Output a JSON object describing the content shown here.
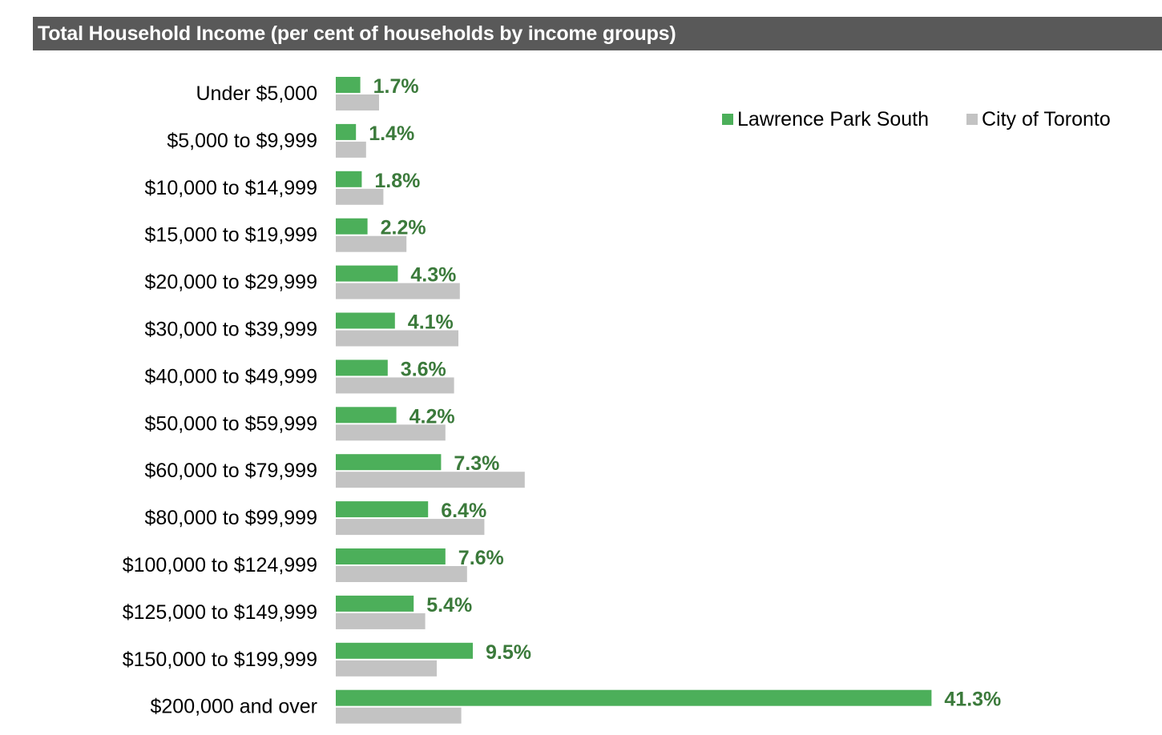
{
  "header": {
    "title": "Total Household Income (per cent of households by income groups)"
  },
  "colors": {
    "title_bar": "#595959",
    "primary_series": "#4caf5a",
    "comparison_series": "#c3c3c3",
    "value_label": "#3b7a3b"
  },
  "chart_data": {
    "type": "bar",
    "orientation": "horizontal",
    "title": "Total Household Income (per cent of households by income groups)",
    "categories": [
      "Under $5,000",
      "$5,000 to $9,999",
      "$10,000 to $14,999",
      "$15,000 to $19,999",
      "$20,000 to $29,999",
      "$30,000 to $39,999",
      "$40,000 to $49,999",
      "$50,000 to $59,999",
      "$60,000 to $79,999",
      "$80,000 to $99,999",
      "$100,000 to $124,999",
      "$125,000 to $149,999",
      "$150,000 to $199,999",
      "$200,000 and over"
    ],
    "series": [
      {
        "name": "Lawrence Park South",
        "color": "#4caf5a",
        "values": [
          1.7,
          1.4,
          1.8,
          2.2,
          4.3,
          4.1,
          3.6,
          4.2,
          7.3,
          6.4,
          7.6,
          5.4,
          9.5,
          41.3
        ],
        "labels": [
          "1.7%",
          "1.4%",
          "1.8%",
          "2.2%",
          "4.3%",
          "4.1%",
          "3.6%",
          "4.2%",
          "7.3%",
          "6.4%",
          "7.6%",
          "5.4%",
          "9.5%",
          "41.3%"
        ]
      },
      {
        "name": "City of Toronto",
        "color": "#c3c3c3",
        "values": [
          3.0,
          2.1,
          3.3,
          4.9,
          8.6,
          8.5,
          8.2,
          7.6,
          13.1,
          10.3,
          9.1,
          6.2,
          7.0,
          8.7
        ]
      }
    ],
    "xlim": [
      0,
      42
    ],
    "grid": false,
    "axis_visible": false,
    "legend_position": "top-right"
  }
}
